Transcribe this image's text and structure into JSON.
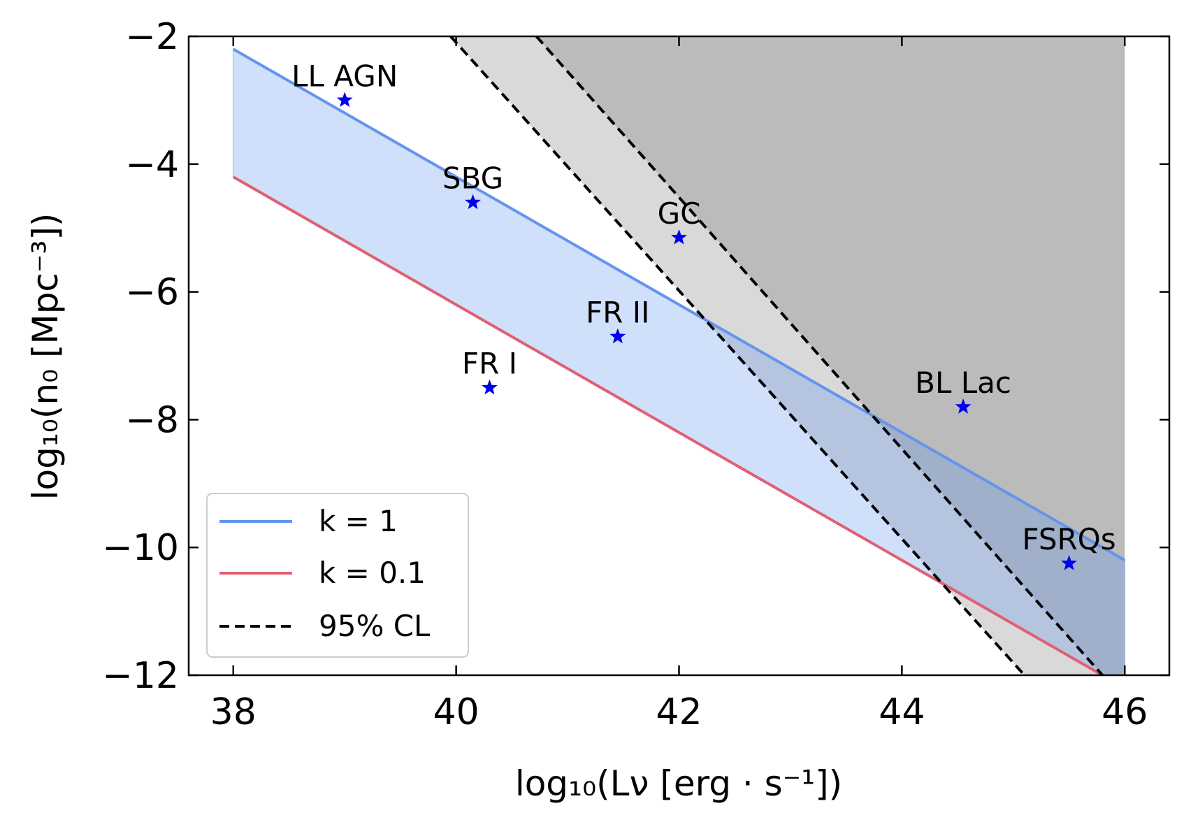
{
  "chart_data": {
    "type": "line",
    "xlabel": "log₁₀(Lν [erg · s⁻¹])",
    "ylabel": "log₁₀(n₀ [Mpc⁻³])",
    "xlim": [
      37.6,
      46.4
    ],
    "ylim": [
      -12,
      -2
    ],
    "xticks": [
      38,
      40,
      42,
      44,
      46
    ],
    "yticks": [
      -2,
      -4,
      -6,
      -8,
      -10,
      -12
    ],
    "grid": false,
    "legend_position": "lower-left",
    "series": [
      {
        "name": "k = 1",
        "style": "solid",
        "color": "#6495ED",
        "x": [
          38,
          46
        ],
        "y": [
          -2.2,
          -10.2
        ]
      },
      {
        "name": "k = 0.1",
        "style": "solid",
        "color": "#E06070",
        "x": [
          38,
          46
        ],
        "y": [
          -4.2,
          -12.2
        ]
      },
      {
        "name": "95% CL",
        "style": "dashed",
        "color": "#000000",
        "x": [
          39.95,
          45.1
        ],
        "y": [
          -2,
          -12
        ]
      }
    ],
    "dashed_line_2": {
      "x": [
        40.72,
        45.8
      ],
      "y": [
        -2,
        -12
      ]
    },
    "points": [
      {
        "label": "LL AGN",
        "x": 39.0,
        "y": -3.0
      },
      {
        "label": "SBG",
        "x": 40.15,
        "y": -4.6
      },
      {
        "label": "GC",
        "x": 42.0,
        "y": -5.15
      },
      {
        "label": "FR II",
        "x": 41.45,
        "y": -6.7
      },
      {
        "label": "FR I",
        "x": 40.3,
        "y": -7.5
      },
      {
        "label": "BL Lac",
        "x": 44.55,
        "y": -7.8
      },
      {
        "label": "FSRQs",
        "x": 45.5,
        "y": -10.25
      }
    ],
    "colors": {
      "band_fill": "#cfdcf6",
      "excluded_light": "#d9d9d9",
      "excluded_dark": "#bbbbbb",
      "marker": "#0000ee"
    }
  }
}
